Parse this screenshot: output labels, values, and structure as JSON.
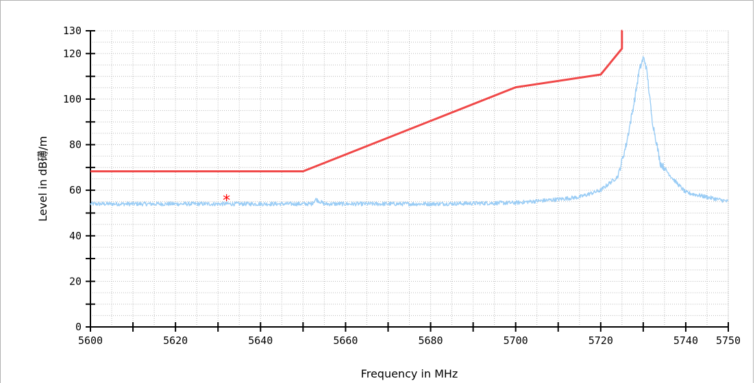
{
  "chart_data": {
    "type": "line",
    "title": "",
    "xlabel": "Frequency in MHz",
    "ylabel": "Level in dB礡/m",
    "xlim": [
      5600,
      5750
    ],
    "ylim": [
      0,
      130
    ],
    "x_ticks": [
      5600,
      5620,
      5640,
      5660,
      5680,
      5700,
      5720,
      5740,
      5750
    ],
    "x_minor_step": 10,
    "y_ticks": [
      0,
      20,
      40,
      60,
      80,
      100,
      120,
      130
    ],
    "y_minor_step": 10,
    "grid": true,
    "series": [
      {
        "color": "#f04848",
        "style": "limit-line",
        "x": [
          5600,
          5650,
          5700,
          5720,
          5725,
          5725,
          5725.1
        ],
        "y": [
          68.3,
          68.3,
          105.2,
          110.8,
          122.2,
          130,
          130
        ]
      },
      {
        "color": "#99ccf5",
        "style": "measured-trace",
        "x": [
          5600,
          5620,
          5640,
          5650,
          5652,
          5653,
          5655,
          5660,
          5680,
          5700,
          5710,
          5715,
          5720,
          5724,
          5726,
          5728,
          5729,
          5730,
          5730.5,
          5731,
          5732,
          5734,
          5737,
          5740,
          5745,
          5750
        ],
        "y": [
          54,
          54,
          54,
          54,
          54,
          56,
          54,
          54,
          54,
          54.5,
          56,
          57,
          60,
          66,
          80,
          100,
          112,
          118,
          116,
          110,
          92,
          72,
          65,
          59,
          57,
          55
        ]
      }
    ],
    "markers": [
      {
        "x": 5632,
        "y": 56,
        "symbol": "*",
        "color": "#ff0000"
      }
    ]
  }
}
